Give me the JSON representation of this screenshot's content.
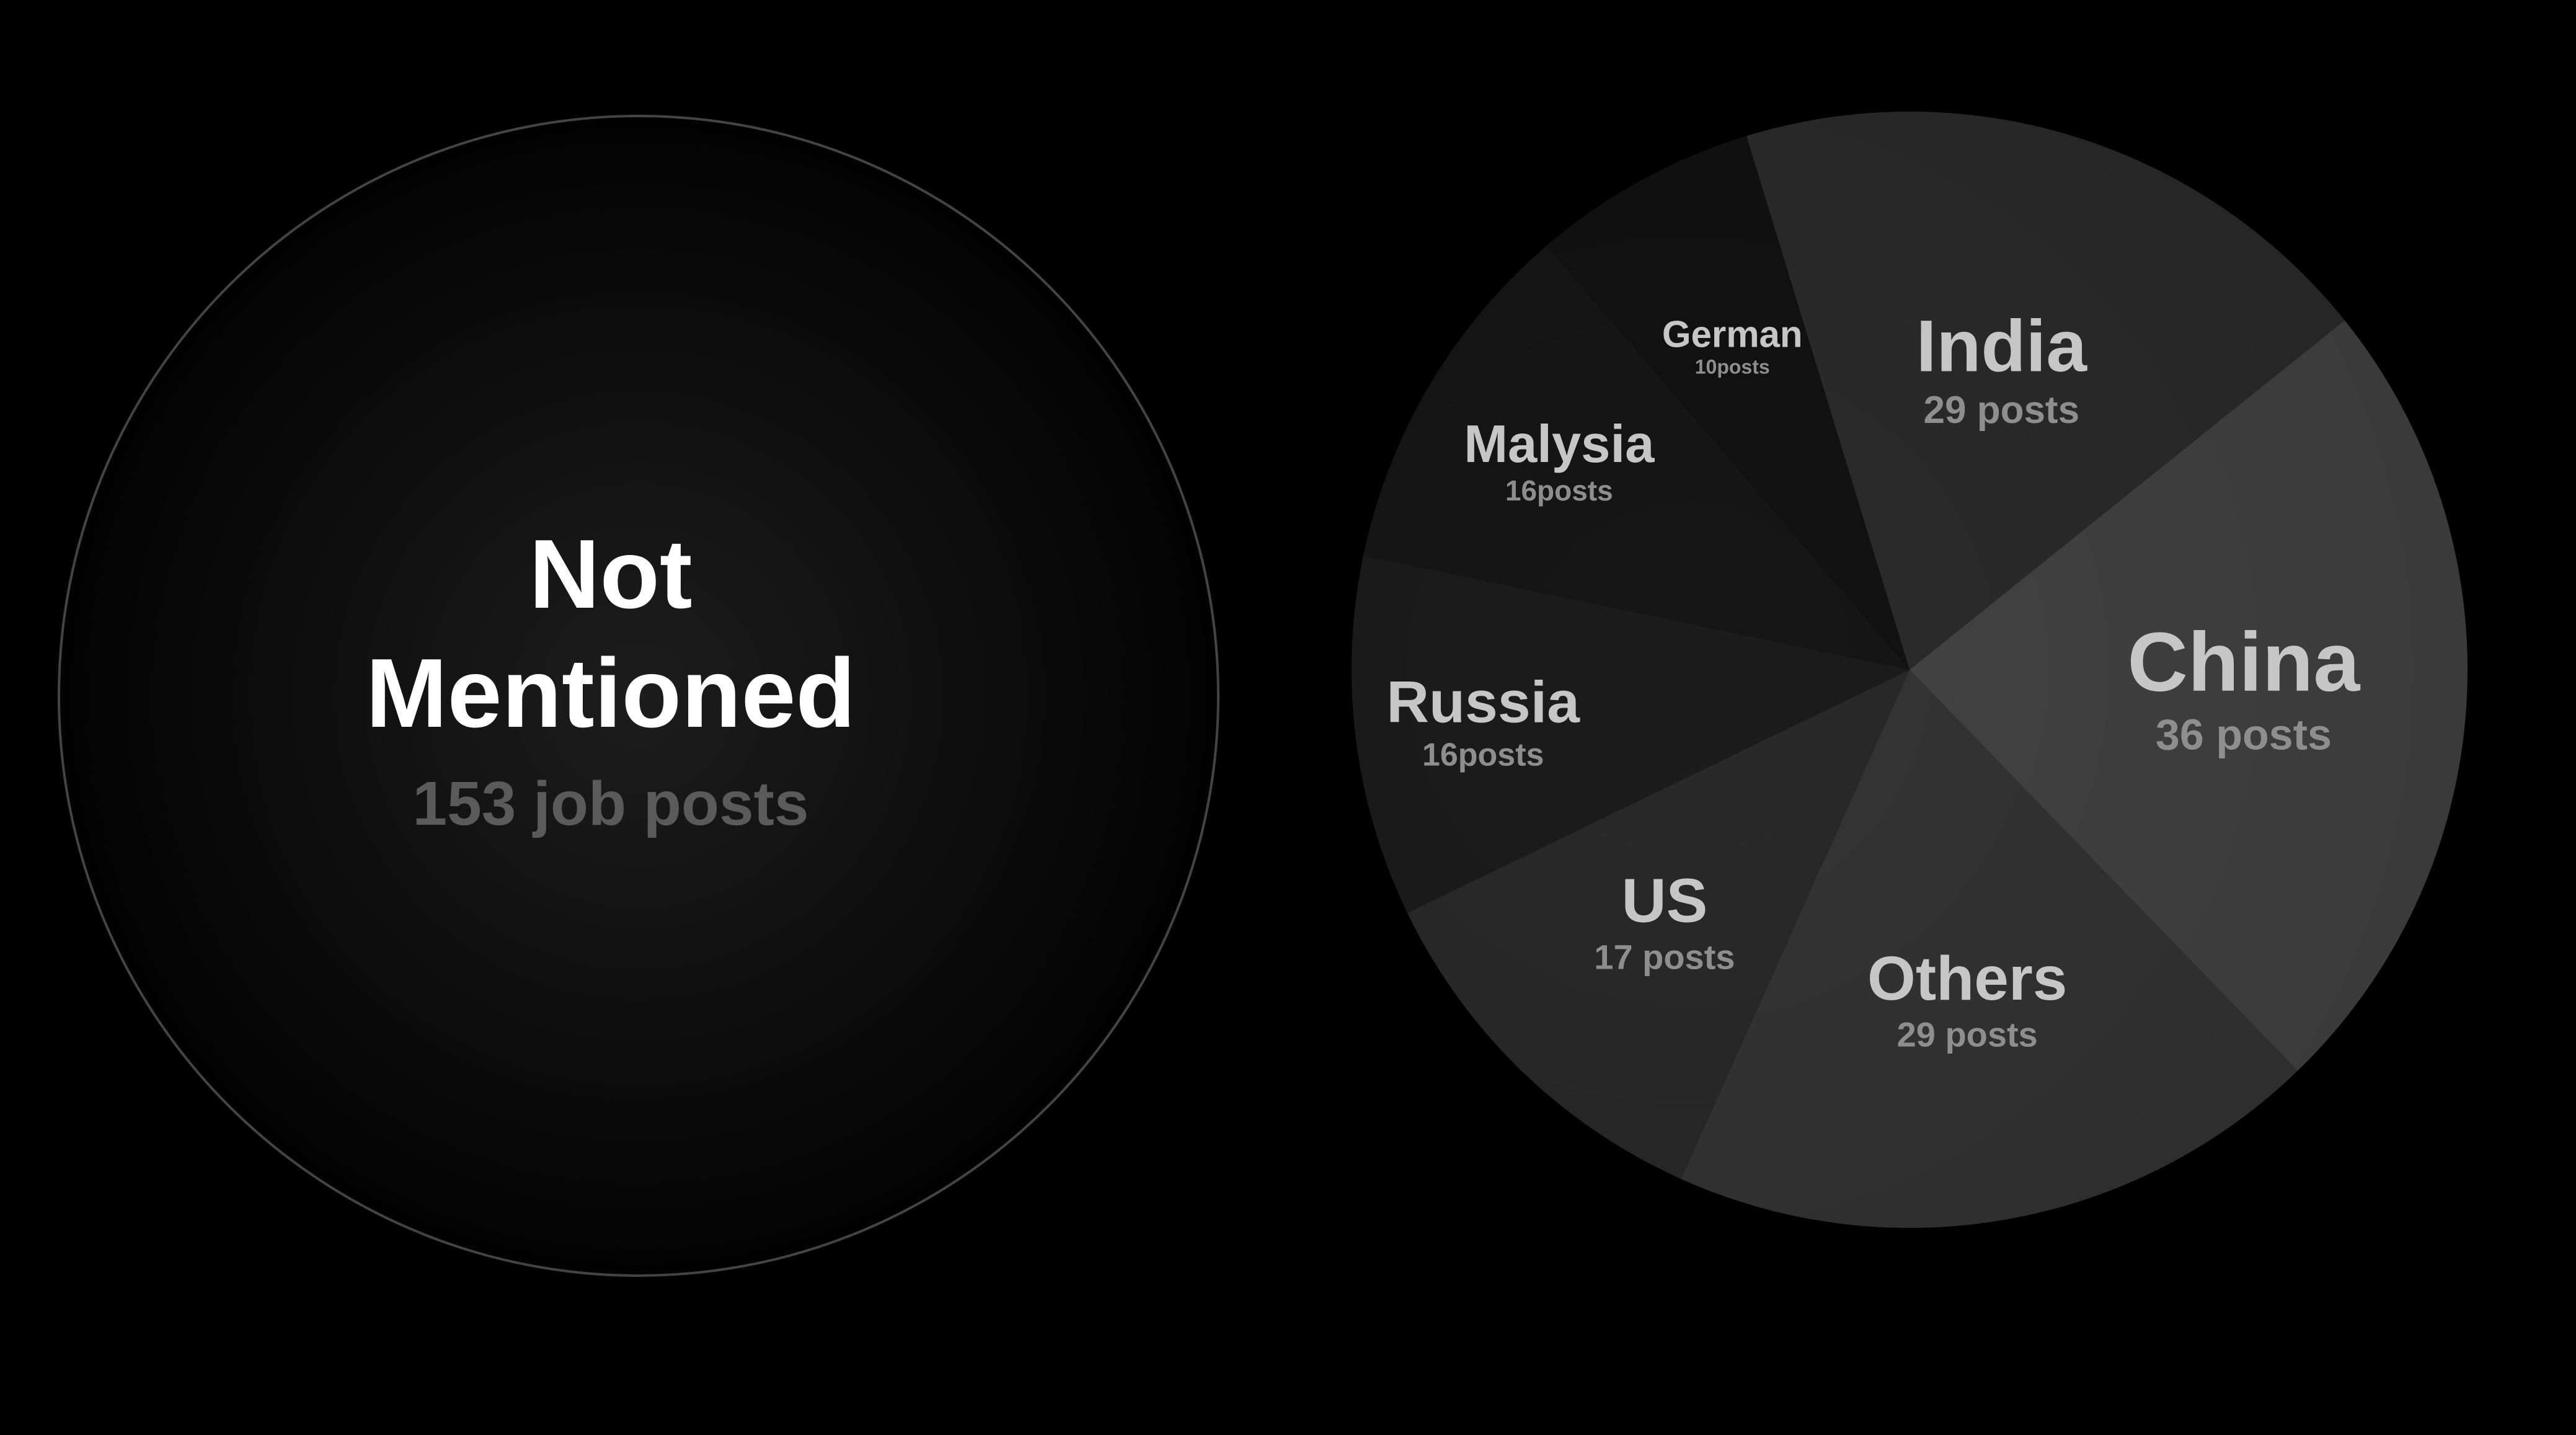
{
  "not_mentioned": {
    "title_line1": "Not",
    "title_line2": "Mentioned",
    "count_label": "153 job posts",
    "value": 153
  },
  "chart_data": {
    "type": "pie",
    "title": "",
    "slices": [
      {
        "name": "India",
        "value": 29,
        "label": "29 posts",
        "color": "#2c2c2c"
      },
      {
        "name": "China",
        "value": 36,
        "label": "36 posts",
        "color": "#444444"
      },
      {
        "name": "Others",
        "value": 29,
        "label": "29 posts",
        "color": "#353535"
      },
      {
        "name": "US",
        "value": 17,
        "label": "17 posts",
        "color": "#2a2a2a"
      },
      {
        "name": "Russia",
        "value": 16,
        "label": "16posts",
        "color": "#1c1c1c"
      },
      {
        "name": "Malysia",
        "value": 16,
        "label": "16posts",
        "color": "#161616"
      },
      {
        "name": "German",
        "value": 10,
        "label": "10posts",
        "color": "#121212"
      }
    ]
  },
  "colors": {
    "background": "#000000",
    "heading_text": "#ffffff",
    "slice_name_text": "#c6c6c6",
    "slice_count_text": "#8e8e8e",
    "not_mentioned_count_text": "#5a5a5a",
    "outline": "#444444"
  }
}
